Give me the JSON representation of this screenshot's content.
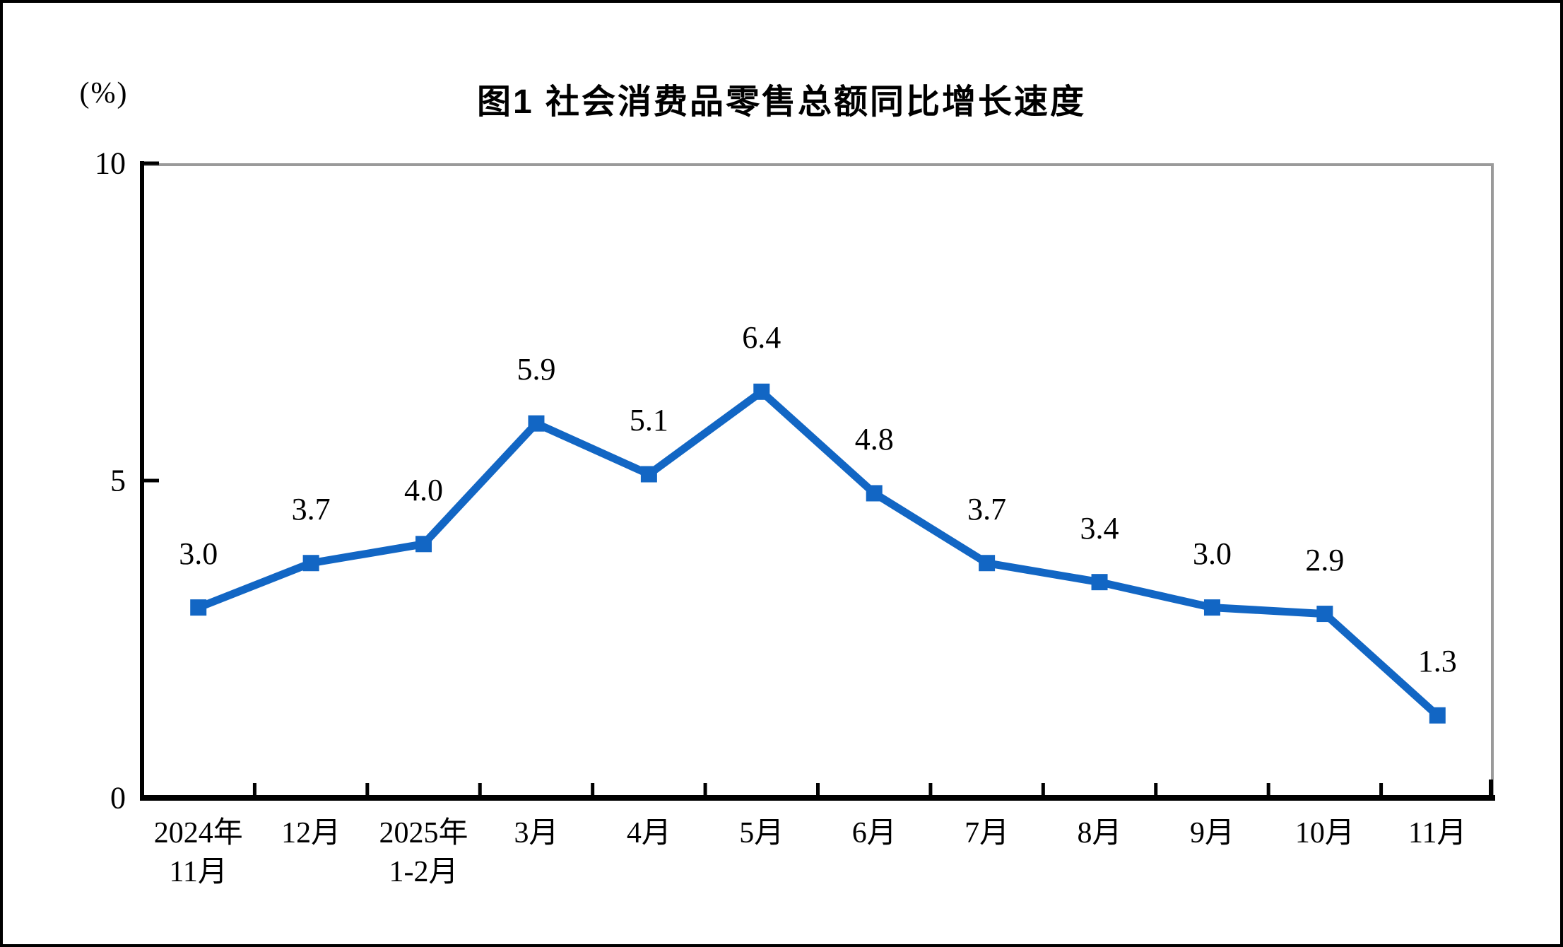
{
  "page": {
    "background": "#ffffff",
    "frame_color": "#000000"
  },
  "chart": {
    "title": "图1  社会消费品零售总额同比增长速度",
    "unit_label": "(%)",
    "colors": {
      "line": "#1266C4",
      "marker": "#1266C4",
      "axis": "#000000",
      "secondary_border": "#9A9A9A",
      "text": "#000000"
    }
  },
  "chart_data": {
    "type": "line",
    "title": "图1  社会消费品零售总额同比增长速度",
    "ylabel": "(%)",
    "xlabel": "",
    "ylim": [
      0,
      10
    ],
    "yticks": [
      0,
      5,
      10
    ],
    "grid": false,
    "legend": "none",
    "marker": "square",
    "categories": [
      "2024年11月",
      "12月",
      "2025年1-2月",
      "3月",
      "4月",
      "5月",
      "6月",
      "7月",
      "8月",
      "9月",
      "10月",
      "11月"
    ],
    "category_lines": [
      [
        "2024年",
        "11月"
      ],
      [
        "12月"
      ],
      [
        "2025年",
        "1-2月"
      ],
      [
        "3月"
      ],
      [
        "4月"
      ],
      [
        "5月"
      ],
      [
        "6月"
      ],
      [
        "7月"
      ],
      [
        "8月"
      ],
      [
        "9月"
      ],
      [
        "10月"
      ],
      [
        "11月"
      ]
    ],
    "series": [
      {
        "name": "社会消费品零售总额同比增长速度",
        "values": [
          3.0,
          3.7,
          4.0,
          5.9,
          5.1,
          6.4,
          4.8,
          3.7,
          3.4,
          3.0,
          2.9,
          1.3
        ]
      }
    ],
    "data_labels": [
      "3.0",
      "3.7",
      "4.0",
      "5.9",
      "5.1",
      "6.4",
      "4.8",
      "3.7",
      "3.4",
      "3.0",
      "2.9",
      "1.3"
    ]
  }
}
